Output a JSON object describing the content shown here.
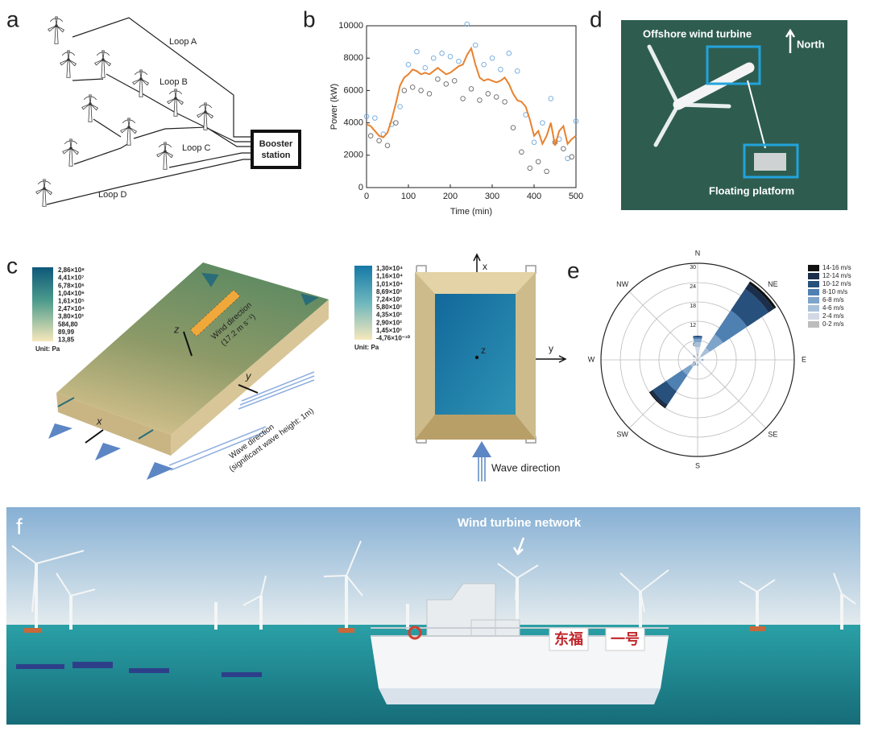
{
  "panel_labels": [
    "a",
    "b",
    "c",
    "d",
    "e",
    "f"
  ],
  "panel_a": {
    "loops": [
      "Loop A",
      "Loop B",
      "Loop C",
      "Loop D"
    ],
    "station": [
      "Booster",
      "station"
    ]
  },
  "panel_c": {
    "left_scale": {
      "labels": [
        "2,86×10⁸",
        "4,41×10⁷",
        "6,78×10⁶",
        "1,04×10⁶",
        "1,61×10⁵",
        "2,47×10⁴",
        "3,80×10³",
        "584,80",
        "89,99",
        "13,85"
      ],
      "unit": "Unit: Pa"
    },
    "right_scale": {
      "labels": [
        "1,30×10⁴",
        "1,16×10⁴",
        "1,01×10⁴",
        "8,69×10³",
        "7,24×10³",
        "5,80×10³",
        "4,35×10³",
        "2,90×10³",
        "1,45×10³",
        "-4,76×10⁻¹⁰"
      ],
      "unit": "Unit: Pa"
    },
    "wind": [
      "Wind direction",
      "(17.2 m s⁻¹)"
    ],
    "wave": [
      "Wave direction",
      "(significant wave height: 1m)"
    ],
    "left_axes": [
      "z",
      "y",
      "x"
    ],
    "right_axes": [
      "x",
      "y",
      "z"
    ],
    "right_wave": "Wave direction"
  },
  "panel_d": {
    "turbine": "Offshore wind turbine",
    "north": "North",
    "platform": "Floating platform"
  },
  "panel_f": {
    "annotation": "Wind turbine network",
    "boat": [
      "东福",
      "一号"
    ]
  },
  "chart_data": [
    {
      "type": "line",
      "xlabel": "Time (min)",
      "ylabel": "Power (kW)",
      "xlim": [
        0,
        500
      ],
      "xticks": [
        0,
        100,
        200,
        300,
        400,
        500
      ],
      "ylim": [
        0,
        10000
      ],
      "yticks": [
        0,
        2000,
        4000,
        6000,
        8000,
        10000
      ],
      "series": [
        {
          "type": "scatter",
          "color": "#6fa8dc",
          "x": [
            0,
            20,
            40,
            60,
            80,
            100,
            120,
            140,
            160,
            180,
            200,
            220,
            240,
            260,
            280,
            300,
            320,
            340,
            360,
            380,
            400,
            420,
            440,
            460,
            480,
            500
          ],
          "values": [
            4400,
            4300,
            3300,
            3900,
            5000,
            7600,
            8400,
            7400,
            8000,
            8300,
            8100,
            7800,
            10100,
            8800,
            7600,
            8000,
            7300,
            8300,
            7200,
            4500,
            2800,
            4000,
            5500,
            3000,
            1800,
            4100
          ]
        },
        {
          "type": "scatter",
          "color": "#666666",
          "x": [
            10,
            30,
            50,
            70,
            90,
            110,
            130,
            150,
            170,
            190,
            210,
            230,
            250,
            270,
            290,
            310,
            330,
            350,
            370,
            390,
            410,
            430,
            450,
            470,
            490
          ],
          "values": [
            3200,
            2900,
            2600,
            4000,
            6000,
            6200,
            6000,
            5800,
            6700,
            6400,
            6600,
            5500,
            6100,
            5400,
            5800,
            5600,
            5300,
            3700,
            2200,
            1200,
            1600,
            1000,
            2800,
            2400,
            1900
          ]
        },
        {
          "type": "line",
          "color": "#e8822f",
          "x": [
            0,
            10,
            20,
            30,
            40,
            50,
            60,
            70,
            80,
            90,
            100,
            110,
            120,
            130,
            140,
            150,
            160,
            170,
            180,
            190,
            200,
            210,
            220,
            230,
            240,
            250,
            260,
            270,
            280,
            290,
            300,
            310,
            320,
            330,
            340,
            350,
            360,
            370,
            380,
            390,
            400,
            410,
            420,
            430,
            440,
            450,
            460,
            470,
            480,
            490,
            500
          ],
          "values": [
            3900,
            3800,
            3500,
            3200,
            3100,
            3400,
            4200,
            5200,
            6300,
            6800,
            7000,
            7300,
            7200,
            7000,
            7100,
            7000,
            7200,
            7400,
            7200,
            7000,
            7100,
            7300,
            7500,
            7600,
            8200,
            8600,
            7600,
            6800,
            6600,
            6700,
            6600,
            6500,
            6600,
            6800,
            6400,
            5800,
            5400,
            5300,
            5000,
            4200,
            3200,
            3500,
            2700,
            3200,
            4000,
            2600,
            3500,
            3800,
            2700,
            3000,
            3200
          ]
        }
      ]
    },
    {
      "type": "polar_bar",
      "categories": [
        "N",
        "NE",
        "E",
        "SE",
        "S",
        "SW",
        "W",
        "NW"
      ],
      "rlim": [
        0,
        30
      ],
      "rticks": [
        0,
        6,
        12,
        18,
        24,
        30
      ],
      "series": [
        {
          "name": "14-16 m/s",
          "color": "#111111",
          "values": [
            0,
            0.8,
            0,
            0,
            0,
            0.4,
            0,
            0
          ]
        },
        {
          "name": "12-14 m/s",
          "color": "#1b2f4d",
          "values": [
            0,
            2,
            0,
            0,
            0,
            1,
            0,
            0
          ]
        },
        {
          "name": "10-12 m/s",
          "color": "#27507c",
          "values": [
            0.5,
            8,
            0,
            0,
            0,
            5,
            0,
            0
          ]
        },
        {
          "name": "8-10 m/s",
          "color": "#4f80b2",
          "values": [
            0.5,
            9,
            0,
            0,
            0,
            6,
            0,
            0
          ]
        },
        {
          "name": "6-8 m/s",
          "color": "#7ea4ca",
          "values": [
            1,
            5,
            0.3,
            0,
            0.3,
            3,
            0,
            0.3
          ]
        },
        {
          "name": "4-6 m/s",
          "color": "#a9c0da",
          "values": [
            1.5,
            3,
            0.5,
            0.3,
            0.5,
            1.5,
            0.3,
            0.5
          ]
        },
        {
          "name": "2-4 m/s",
          "color": "#d2d8e4",
          "values": [
            2,
            1,
            0.5,
            0.5,
            0.5,
            0.7,
            0.5,
            0.5
          ]
        },
        {
          "name": "0-2 m/s",
          "color": "#bdbdbd",
          "values": [
            2,
            0.5,
            0.5,
            0.5,
            0.5,
            0.5,
            0.5,
            0.5
          ]
        }
      ]
    }
  ]
}
